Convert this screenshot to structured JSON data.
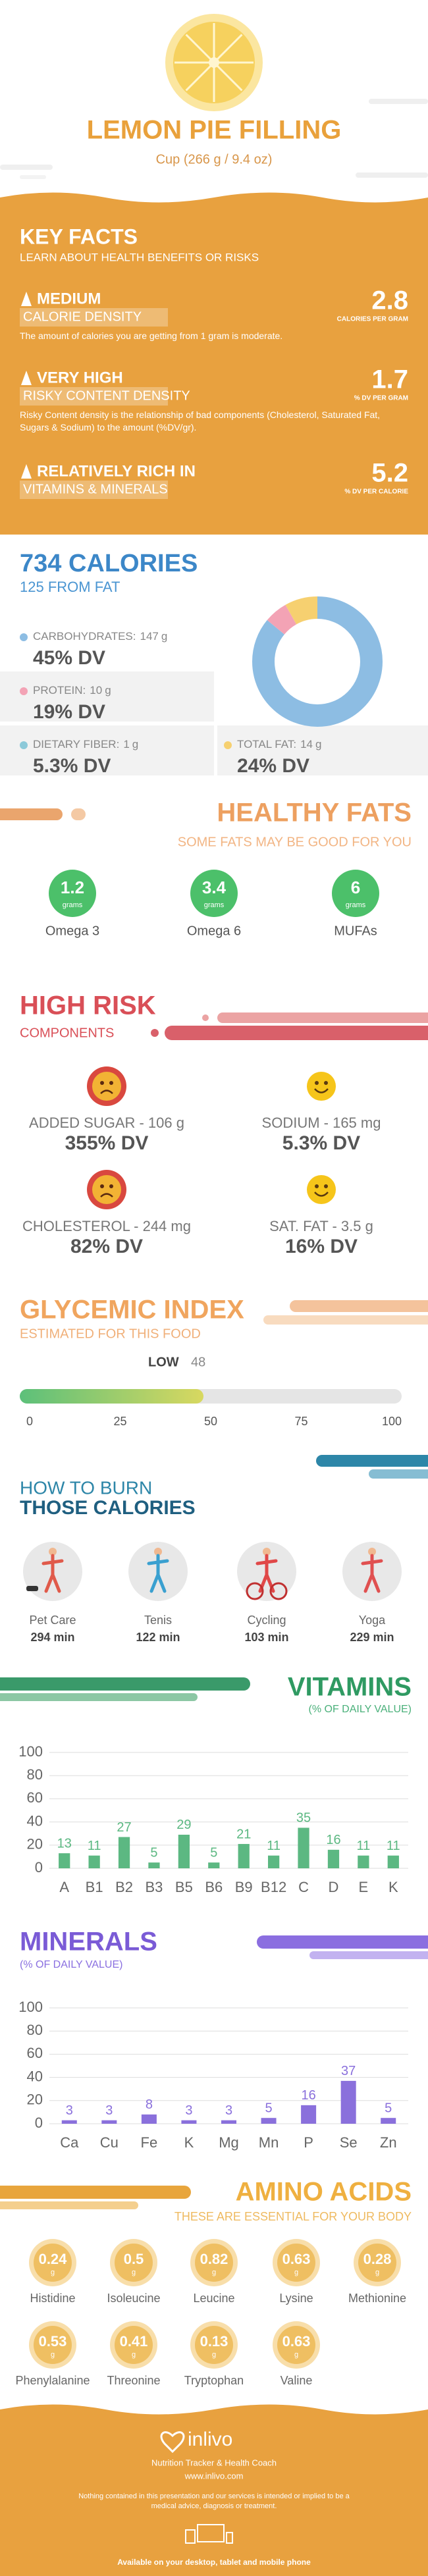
{
  "header": {
    "title": "LEMON PIE FILLING",
    "serving": "Cup (266 g / 9.4 oz)"
  },
  "key_facts": {
    "title": "KEY FACTS",
    "subtitle": "LEARN ABOUT HEALTH BENEFITS OR RISKS",
    "items": [
      {
        "level": "MEDIUM",
        "label": "CALORIE DENSITY",
        "value": 2.8,
        "unit": "CALORIES PER GRAM",
        "description": "The amount of calories you are getting from 1 gram is moderate."
      },
      {
        "level": "VERY HIGH",
        "label": "RISKY CONTENT DENSITY",
        "value": 1.7,
        "unit": "% DV PER GRAM",
        "description": "Risky Content density is the relationship of bad components (Cholesterol, Saturated Fat, Sugars & Sodium) to the amount (%DV/gr)."
      },
      {
        "level": "RELATIVELY RICH IN",
        "label": "VITAMINS & MINERALS",
        "value": 5.2,
        "unit": "% DV PER CALORIE"
      }
    ]
  },
  "calories": {
    "title": "734 CALORIES",
    "from_fat": "125 FROM FAT",
    "nutrients": [
      {
        "name": "CARBOHYDRATES:",
        "grams": 147,
        "unit": "g",
        "dv": "45% DV",
        "color": "#8dbde3"
      },
      {
        "name": "PROTEIN:",
        "grams": 10,
        "unit": "g",
        "dv": "19% DV",
        "color": "#f3a3b5"
      },
      {
        "name": "DIETARY FIBER:",
        "grams": 1,
        "unit": "g",
        "dv": "5.3% DV",
        "color": "#8cc9d9"
      },
      {
        "name": "TOTAL FAT:",
        "grams": 14,
        "unit": "g",
        "dv": "24% DV",
        "color": "#f6d070"
      }
    ]
  },
  "healthy_fats": {
    "title": "HEALTHY FATS",
    "subtitle": "SOME FATS MAY BE GOOD FOR YOU",
    "unit": "grams",
    "items": [
      {
        "value": 1.2,
        "name": "Omega 3"
      },
      {
        "value": 3.4,
        "name": "Omega 6"
      },
      {
        "value": 6,
        "name": "MUFAs"
      }
    ]
  },
  "high_risk": {
    "title": "HIGH RISK",
    "subtitle": "COMPONENTS",
    "items": [
      {
        "name": "ADDED SUGAR - 106 g",
        "dv": "355% DV",
        "mood": "sad"
      },
      {
        "name": "SODIUM - 165 mg",
        "dv": "5.3% DV",
        "mood": "happy"
      },
      {
        "name": "CHOLESTEROL - 244 mg",
        "dv": "82% DV",
        "mood": "sad"
      },
      {
        "name": "SAT. FAT - 3.5 g",
        "dv": "16% DV",
        "mood": "happy"
      }
    ]
  },
  "glycemic_index": {
    "title": "GLYCEMIC INDEX",
    "subtitle": "ESTIMATED FOR THIS FOOD",
    "level": "LOW",
    "value": 48,
    "lim": [
      0,
      100
    ],
    "ticks": [
      0,
      25,
      50,
      75,
      100
    ]
  },
  "burn": {
    "title": "HOW TO BURN",
    "subtitle": "THOSE CALORIES",
    "unit": "min",
    "activities": [
      {
        "name": "Pet Care",
        "minutes": 294
      },
      {
        "name": "Tenis",
        "minutes": 122
      },
      {
        "name": "Cycling",
        "minutes": 103
      },
      {
        "name": "Yoga",
        "minutes": 229
      }
    ]
  },
  "chart_data": [
    {
      "type": "bar",
      "title": "VITAMINS",
      "subtitle": "(% OF DAILY VALUE)",
      "categories": [
        "A",
        "B1",
        "B2",
        "B3",
        "B5",
        "B6",
        "B9",
        "B12",
        "C",
        "D",
        "E",
        "K"
      ],
      "values": [
        13,
        11,
        27,
        5,
        29,
        5,
        21,
        11,
        35,
        16,
        11,
        11
      ],
      "color": "#5cb882",
      "ylim": [
        0,
        100
      ],
      "yticks": [
        0,
        20,
        40,
        60,
        80,
        100
      ],
      "grid": true
    },
    {
      "type": "bar",
      "title": "MINERALS",
      "subtitle": "(% OF DAILY VALUE)",
      "categories": [
        "Ca",
        "Cu",
        "Fe",
        "K",
        "Mg",
        "Mn",
        "P",
        "Se",
        "Zn"
      ],
      "values": [
        3,
        3,
        8,
        3,
        3,
        5,
        16,
        37,
        5
      ],
      "color": "#8a70dc",
      "ylim": [
        0,
        100
      ],
      "yticks": [
        0,
        20,
        40,
        60,
        80,
        100
      ],
      "grid": true
    }
  ],
  "amino_acids": {
    "title": "AMINO ACIDS",
    "subtitle": "THESE ARE ESSENTIAL FOR YOUR BODY",
    "unit": "g",
    "items": [
      {
        "name": "Histidine",
        "value": 0.24
      },
      {
        "name": "Isoleucine",
        "value": 0.5
      },
      {
        "name": "Leucine",
        "value": 0.82
      },
      {
        "name": "Lysine",
        "value": 0.63
      },
      {
        "name": "Methionine",
        "value": 0.28
      },
      {
        "name": "Phenylalanine",
        "value": 0.53
      },
      {
        "name": "Threonine",
        "value": 0.41
      },
      {
        "name": "Tryptophan",
        "value": 0.13
      },
      {
        "name": "Valine",
        "value": 0.63
      }
    ]
  },
  "footer": {
    "brand": "inlivo",
    "tagline": "Nutrition Tracker & Health Coach",
    "url": "www.inlivo.com",
    "disclaimer": "Nothing contained in this presentation and our services is intended or implied to be a medical advice, diagnosis or treatment.",
    "availability": "Available on your desktop, tablet and mobile phone"
  }
}
